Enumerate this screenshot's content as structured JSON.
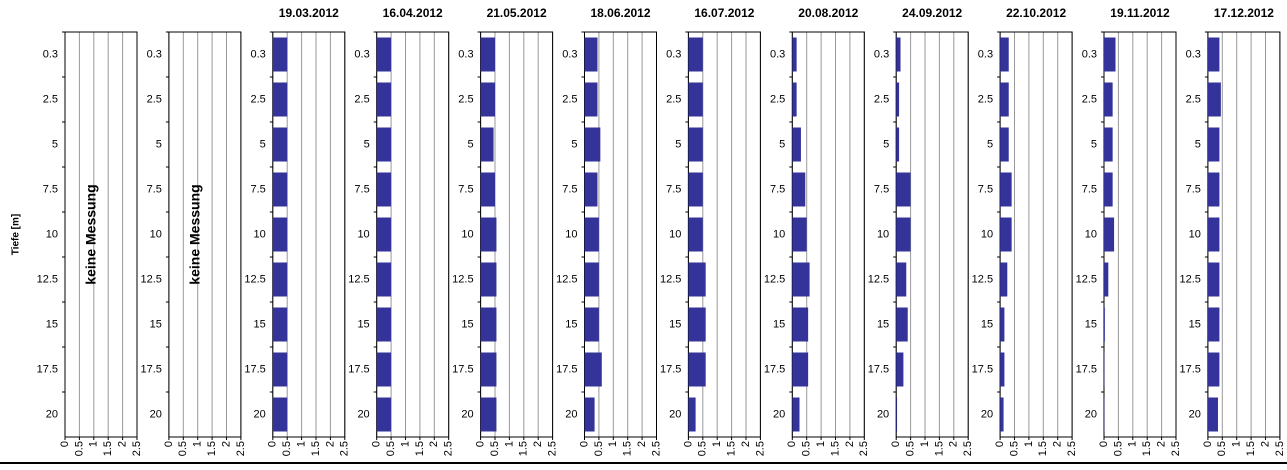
{
  "chart_data": [
    {
      "type": "bar",
      "orientation": "horizontal",
      "ylabel": "Tiefe [m]",
      "annotation": "keine Messung",
      "categories": [
        "0.3",
        "2.5",
        "5",
        "7.5",
        "10",
        "12.5",
        "15",
        "17.5",
        "20"
      ],
      "values": [
        null,
        null,
        null,
        null,
        null,
        null,
        null,
        null,
        null
      ],
      "color": "#333399",
      "xlim": [
        0,
        2.5
      ],
      "xticks": [
        0,
        0.5,
        1,
        1.5,
        2,
        2.5
      ],
      "grid": true
    },
    {
      "type": "bar",
      "orientation": "horizontal",
      "annotation": "keine Messung",
      "categories": [
        "0.3",
        "2.5",
        "5",
        "7.5",
        "10",
        "12.5",
        "15",
        "17.5",
        "20"
      ],
      "values": [
        null,
        null,
        null,
        null,
        null,
        null,
        null,
        null,
        null
      ],
      "color": "#333399",
      "xlim": [
        0,
        2.5
      ],
      "xticks": [
        0,
        0.5,
        1,
        1.5,
        2,
        2.5
      ],
      "grid": true
    },
    {
      "type": "bar",
      "orientation": "horizontal",
      "title": "19.03.2012",
      "categories": [
        "0.3",
        "2.5",
        "5",
        "7.5",
        "10",
        "12.5",
        "15",
        "17.5",
        "20"
      ],
      "values": [
        0.5,
        0.5,
        0.5,
        0.5,
        0.5,
        0.5,
        0.5,
        0.5,
        0.5
      ],
      "color": "#333399",
      "xlim": [
        0,
        2.5
      ],
      "xticks": [
        0,
        0.5,
        1,
        1.5,
        2,
        2.5
      ],
      "grid": true
    },
    {
      "type": "bar",
      "orientation": "horizontal",
      "title": "16.04.2012",
      "categories": [
        "0.3",
        "2.5",
        "5",
        "7.5",
        "10",
        "12.5",
        "15",
        "17.5",
        "20"
      ],
      "values": [
        0.5,
        0.5,
        0.5,
        0.5,
        0.5,
        0.5,
        0.5,
        0.5,
        0.5
      ],
      "color": "#333399",
      "xlim": [
        0,
        2.5
      ],
      "xticks": [
        0,
        0.5,
        1,
        1.5,
        2,
        2.5
      ],
      "grid": true
    },
    {
      "type": "bar",
      "orientation": "horizontal",
      "title": "21.05.2012",
      "categories": [
        "0.3",
        "2.5",
        "5",
        "7.5",
        "10",
        "12.5",
        "15",
        "17.5",
        "20"
      ],
      "values": [
        0.5,
        0.5,
        0.45,
        0.5,
        0.55,
        0.55,
        0.55,
        0.55,
        0.55
      ],
      "color": "#333399",
      "xlim": [
        0,
        2.5
      ],
      "xticks": [
        0,
        0.5,
        1,
        1.5,
        2,
        2.5
      ],
      "grid": true
    },
    {
      "type": "bar",
      "orientation": "horizontal",
      "title": "18.06.2012",
      "categories": [
        "0.3",
        "2.5",
        "5",
        "7.5",
        "10",
        "12.5",
        "15",
        "17.5",
        "20"
      ],
      "values": [
        0.45,
        0.45,
        0.55,
        0.45,
        0.5,
        0.5,
        0.5,
        0.6,
        0.35
      ],
      "color": "#333399",
      "xlim": [
        0,
        2.5
      ],
      "xticks": [
        0,
        0.5,
        1,
        1.5,
        2,
        2.5
      ],
      "grid": true
    },
    {
      "type": "bar",
      "orientation": "horizontal",
      "title": "16.07.2012",
      "categories": [
        "0.3",
        "2.5",
        "5",
        "7.5",
        "10",
        "12.5",
        "15",
        "17.5",
        "20"
      ],
      "values": [
        0.5,
        0.5,
        0.5,
        0.5,
        0.5,
        0.6,
        0.6,
        0.6,
        0.25
      ],
      "color": "#333399",
      "xlim": [
        0,
        2.5
      ],
      "xticks": [
        0,
        0.5,
        1,
        1.5,
        2,
        2.5
      ],
      "grid": true
    },
    {
      "type": "bar",
      "orientation": "horizontal",
      "title": "20.08.2012",
      "categories": [
        "0.3",
        "2.5",
        "5",
        "7.5",
        "10",
        "12.5",
        "15",
        "17.5",
        "20"
      ],
      "values": [
        0.15,
        0.15,
        0.3,
        0.45,
        0.5,
        0.6,
        0.55,
        0.55,
        0.25
      ],
      "color": "#333399",
      "xlim": [
        0,
        2.5
      ],
      "xticks": [
        0,
        0.5,
        1,
        1.5,
        2,
        2.5
      ],
      "grid": true
    },
    {
      "type": "bar",
      "orientation": "horizontal",
      "title": "24.09.2012",
      "categories": [
        "0.3",
        "2.5",
        "5",
        "7.5",
        "10",
        "12.5",
        "15",
        "17.5",
        "20"
      ],
      "values": [
        0.15,
        0.1,
        0.1,
        0.5,
        0.5,
        0.35,
        0.4,
        0.25,
        0.03
      ],
      "color": "#333399",
      "xlim": [
        0,
        2.5
      ],
      "xticks": [
        0,
        0.5,
        1,
        1.5,
        2,
        2.5
      ],
      "grid": true
    },
    {
      "type": "bar",
      "orientation": "horizontal",
      "title": "22.10.2012",
      "categories": [
        "0.3",
        "2.5",
        "5",
        "7.5",
        "10",
        "12.5",
        "15",
        "17.5",
        "20"
      ],
      "values": [
        0.3,
        0.3,
        0.3,
        0.4,
        0.4,
        0.25,
        0.15,
        0.15,
        0.12
      ],
      "color": "#333399",
      "xlim": [
        0,
        2.5
      ],
      "xticks": [
        0,
        0.5,
        1,
        1.5,
        2,
        2.5
      ],
      "grid": true
    },
    {
      "type": "bar",
      "orientation": "horizontal",
      "title": "19.11.2012",
      "categories": [
        "0.3",
        "2.5",
        "5",
        "7.5",
        "10",
        "12.5",
        "15",
        "17.5",
        "20"
      ],
      "values": [
        0.4,
        0.3,
        0.3,
        0.3,
        0.35,
        0.15,
        0.03,
        0.01,
        0.01
      ],
      "color": "#333399",
      "xlim": [
        0,
        2.5
      ],
      "xticks": [
        0,
        0.5,
        1,
        1.5,
        2,
        2.5
      ],
      "grid": true
    },
    {
      "type": "bar",
      "orientation": "horizontal",
      "title": "17.12.2012",
      "categories": [
        "0.3",
        "2.5",
        "5",
        "7.5",
        "10",
        "12.5",
        "15",
        "17.5",
        "20"
      ],
      "values": [
        0.4,
        0.45,
        0.4,
        0.4,
        0.4,
        0.4,
        0.4,
        0.4,
        0.35
      ],
      "color": "#333399",
      "xlim": [
        0,
        2.5
      ],
      "xticks": [
        0,
        0.5,
        1,
        1.5,
        2,
        2.5
      ],
      "grid": true
    }
  ]
}
